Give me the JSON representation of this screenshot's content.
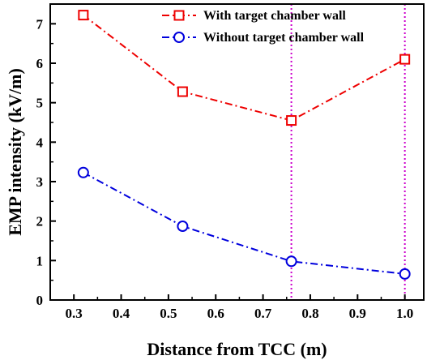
{
  "chart_data": {
    "type": "line",
    "title": "",
    "xlabel": "Distance from TCC (m)",
    "ylabel": "EMP intensity (kV/m)",
    "xlim": [
      0.25,
      1.04
    ],
    "ylim": [
      0,
      7.5
    ],
    "xticks": [
      "0.3",
      "0.4",
      "0.5",
      "0.6",
      "0.7",
      "0.8",
      "0.9",
      "1.0"
    ],
    "yticks": [
      "0",
      "1",
      "2",
      "3",
      "4",
      "5",
      "6",
      "7"
    ],
    "grid": false,
    "legend_position": "top-right",
    "vertical_lines": [
      0.76,
      1.0
    ],
    "vertical_line_color": "#cc00cc",
    "series": [
      {
        "name": "With target chamber wall",
        "color": "#ee0000",
        "marker": "square",
        "x": [
          0.32,
          0.53,
          0.76,
          1.0
        ],
        "y": [
          7.22,
          5.28,
          4.55,
          6.1
        ]
      },
      {
        "name": "Without target chamber wall",
        "color": "#0000dd",
        "marker": "circle",
        "x": [
          0.32,
          0.53,
          0.76,
          1.0
        ],
        "y": [
          3.23,
          1.87,
          0.98,
          0.66
        ]
      }
    ]
  }
}
